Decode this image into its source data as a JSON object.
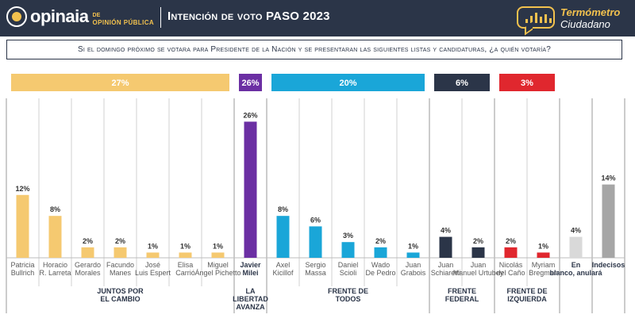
{
  "header": {
    "logo_text": "opinaia",
    "logo_sub_1": "DE",
    "logo_sub_2": "OPINIÓN PÚBLICA",
    "title": "Intención de voto PASO 2023",
    "brand_1": "Termómetro",
    "brand_2": "Ciudadano"
  },
  "question": "Si el domingo próximo se votara para Presidente de la Nación y se presentaran las siguientes listas y candidaturas, ¿a quién votaría?",
  "colors": {
    "header_bg": "#2b3548",
    "accent": "#f2c14e",
    "juntos": "#f5c970",
    "libertad": "#6b2fa3",
    "frente_todos": "#1aa6d8",
    "frente_federal": "#2b3548",
    "izquierda": "#e0272e",
    "blanco": "#d9d9d9",
    "indecisos": "#a6a6a6"
  },
  "chart_data": {
    "type": "bar",
    "ylim": [
      0,
      30
    ],
    "groups": [
      {
        "name": "JUNTOS POR EL CAMBIO",
        "total": "27%",
        "color": "#f5c970",
        "header_text_color": "#ffffff",
        "start": 0,
        "count": 7
      },
      {
        "name": "LA LIBERTAD AVANZA",
        "total": "26%",
        "color": "#6b2fa3",
        "header_text_color": "#ffffff",
        "start": 7,
        "count": 1
      },
      {
        "name": "FRENTE DE TODOS",
        "total": "20%",
        "color": "#1aa6d8",
        "header_text_color": "#ffffff",
        "start": 8,
        "count": 5
      },
      {
        "name": "FRENTE FEDERAL",
        "total": "6%",
        "color": "#2b3548",
        "header_text_color": "#ffffff",
        "start": 13,
        "count": 2
      },
      {
        "name": "FRENTE DE IZQUIERDA",
        "total": "3%",
        "color": "#e0272e",
        "header_text_color": "#ffffff",
        "start": 15,
        "count": 2
      },
      {
        "name": "",
        "total": "",
        "color": "",
        "start": 17,
        "count": 1
      },
      {
        "name": "",
        "total": "",
        "color": "",
        "start": 18,
        "count": 1
      }
    ],
    "candidates": [
      {
        "name": "Patricia Bullrich",
        "value": 12,
        "label": "12%",
        "color": "#f5c970"
      },
      {
        "name": "Horacio R. Larreta",
        "value": 8,
        "label": "8%",
        "color": "#f5c970"
      },
      {
        "name": "Gerardo Morales",
        "value": 2,
        "label": "2%",
        "color": "#f5c970"
      },
      {
        "name": "Facundo Manes",
        "value": 2,
        "label": "2%",
        "color": "#f5c970"
      },
      {
        "name": "José Luis Espert",
        "value": 1,
        "label": "1%",
        "color": "#f5c970"
      },
      {
        "name": "Elisa Carrió",
        "value": 1,
        "label": "1%",
        "color": "#f5c970"
      },
      {
        "name": "Miguel Ángel Pichetto",
        "value": 1,
        "label": "1%",
        "color": "#f5c970"
      },
      {
        "name": "Javier Milei",
        "value": 26,
        "label": "26%",
        "color": "#6b2fa3"
      },
      {
        "name": "Axel Kicillof",
        "value": 8,
        "label": "8%",
        "color": "#1aa6d8"
      },
      {
        "name": "Sergio Massa",
        "value": 6,
        "label": "6%",
        "color": "#1aa6d8"
      },
      {
        "name": "Daniel Scioli",
        "value": 3,
        "label": "3%",
        "color": "#1aa6d8"
      },
      {
        "name": "Wado De Pedro",
        "value": 2,
        "label": "2%",
        "color": "#1aa6d8"
      },
      {
        "name": "Juan Grabois",
        "value": 1,
        "label": "1%",
        "color": "#1aa6d8"
      },
      {
        "name": "Juan Schiaretti",
        "value": 4,
        "label": "4%",
        "color": "#2b3548"
      },
      {
        "name": "Juan Manuel Urtubey",
        "value": 2,
        "label": "2%",
        "color": "#2b3548"
      },
      {
        "name": "Nicolás del Caño",
        "value": 2,
        "label": "2%",
        "color": "#e0272e"
      },
      {
        "name": "Myriam Bregman",
        "value": 1,
        "label": "1%",
        "color": "#e0272e"
      },
      {
        "name": "En blanco, anulará",
        "value": 4,
        "label": "4%",
        "color": "#d9d9d9"
      },
      {
        "name": "Indecisos",
        "value": 14,
        "label": "14%",
        "color": "#a6a6a6"
      }
    ]
  }
}
